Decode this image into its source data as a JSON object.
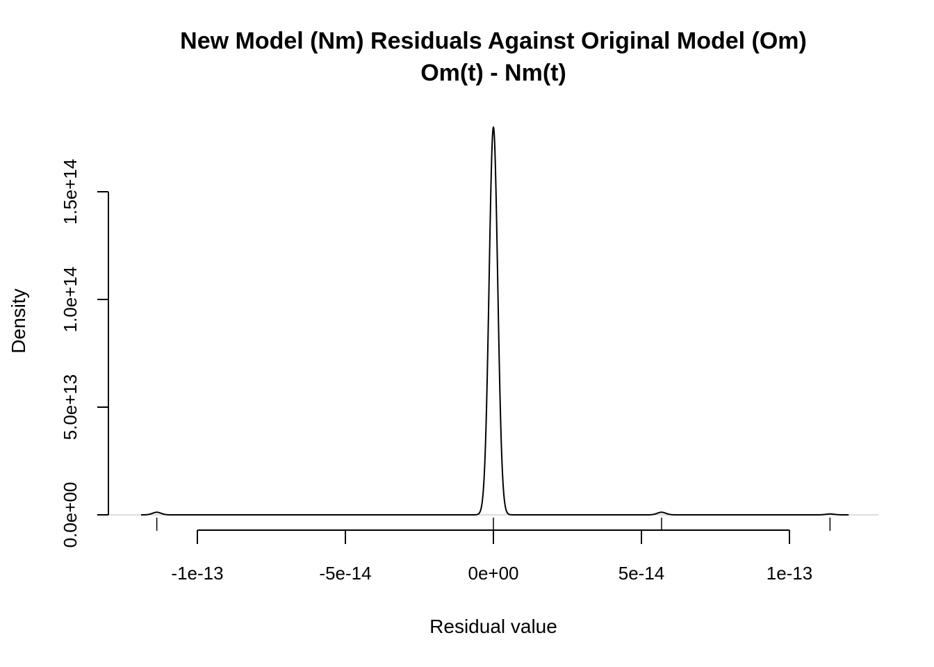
{
  "chart_data": {
    "type": "line",
    "title": "New Model (Nm) Residuals Against Original Model (Om)",
    "subtitle": "Om(t) - Nm(t)",
    "xlabel": "Residual value",
    "ylabel": "Density",
    "xlim": [
      -1.2e-13,
      1.2e-13
    ],
    "ylim": [
      0,
      180000000000000.0
    ],
    "x_ticks": [
      {
        "value": -1e-13,
        "label": "-1e-13"
      },
      {
        "value": -5e-14,
        "label": "-5e-14"
      },
      {
        "value": 0,
        "label": "0e+00"
      },
      {
        "value": 5e-14,
        "label": "5e-14"
      },
      {
        "value": 1e-13,
        "label": "1e-13"
      }
    ],
    "y_ticks": [
      {
        "value": 0,
        "label": "0.0e+00"
      },
      {
        "value": 50000000000000.0,
        "label": "5.0e+13"
      },
      {
        "value": 100000000000000.0,
        "label": "1.0e+14"
      },
      {
        "value": 150000000000000.0,
        "label": "1.5e+14"
      }
    ],
    "rug": [
      -1.137e-13,
      0,
      5.68e-14,
      1.137e-13
    ],
    "series": [
      {
        "components": [
          {
            "center": 0,
            "height": 180000000000000.0,
            "sd": 1.45e-15
          },
          {
            "center": -1.137e-13,
            "height": 1200000000000.0,
            "sd": 1.45e-15
          },
          {
            "center": 5.68e-14,
            "height": 1200000000000.0,
            "sd": 1.45e-15
          },
          {
            "center": 1.137e-13,
            "height": 400000000000.0,
            "sd": 1.45e-15
          }
        ],
        "x_range": [
          -1.19e-13,
          1.2e-13
        ]
      }
    ],
    "grid": false,
    "line_color": "#000000"
  }
}
